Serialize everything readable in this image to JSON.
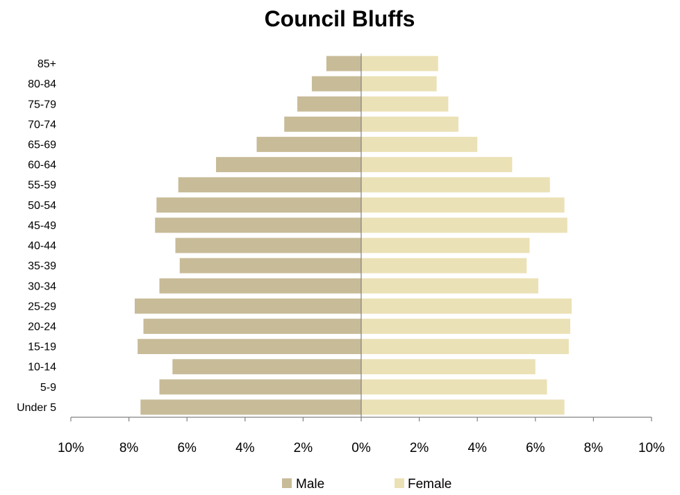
{
  "chart_data": {
    "type": "bar",
    "orientation": "horizontal",
    "title": "Council Bluffs",
    "categories": [
      "85+",
      "80-84",
      "75-79",
      "70-74",
      "65-69",
      "60-64",
      "55-59",
      "50-54",
      "45-49",
      "40-44",
      "35-39",
      "30-34",
      "25-29",
      "20-24",
      "15-19",
      "10-14",
      "5-9",
      "Under 5"
    ],
    "series": [
      {
        "name": "Male",
        "color": "#c8bb98",
        "values": [
          1.2,
          1.7,
          2.2,
          2.65,
          3.6,
          5.0,
          6.3,
          7.05,
          7.1,
          6.4,
          6.25,
          6.95,
          7.8,
          7.5,
          7.7,
          6.5,
          6.95,
          7.6
        ]
      },
      {
        "name": "Female",
        "color": "#ebe1b6",
        "values": [
          2.65,
          2.6,
          3.0,
          3.35,
          4.0,
          5.2,
          6.5,
          7.0,
          7.1,
          5.8,
          5.7,
          6.1,
          7.25,
          7.2,
          7.15,
          6.0,
          6.4,
          7.0
        ]
      }
    ],
    "xlim": [
      -10,
      10
    ],
    "xticks": [
      -10,
      -8,
      -6,
      -4,
      -2,
      0,
      2,
      4,
      6,
      8,
      10
    ],
    "xtick_labels": [
      "10%",
      "8%",
      "6%",
      "4%",
      "2%",
      "0%",
      "2%",
      "4%",
      "6%",
      "8%",
      "10%"
    ],
    "grid": false,
    "legend_position": "bottom",
    "axis_color": "#808080"
  }
}
